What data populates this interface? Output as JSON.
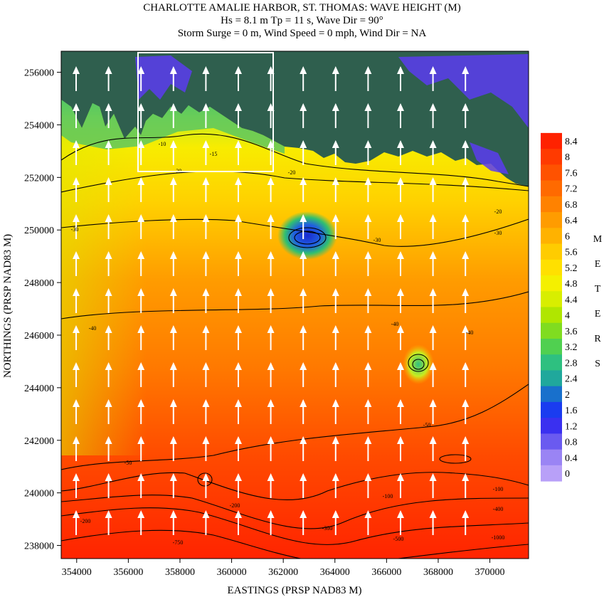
{
  "chart_data": {
    "type": "heatmap",
    "title": "CHARLOTTE AMALIE HARBOR, ST. THOMAS: WAVE HEIGHT (M)",
    "subtitle_lines": [
      "Hs = 8.1 m Tp = 11 s, Wave Dir = 90°",
      "Storm Surge = 0 m, Wind Speed = 0 mph, Wind Dir = NA"
    ],
    "xlabel": "EASTINGS (PRSP NAD83 M)",
    "ylabel": "NORTHINGS (PRSP NAD83 M)",
    "xlim": [
      353400,
      371500
    ],
    "ylim": [
      237500,
      256800
    ],
    "x_ticks": [
      "354000",
      "356000",
      "358000",
      "360000",
      "362000",
      "364000",
      "366000",
      "368000",
      "370000"
    ],
    "y_ticks": [
      "238000",
      "240000",
      "242000",
      "244000",
      "246000",
      "248000",
      "250000",
      "252000",
      "254000",
      "256000"
    ],
    "colorbar": {
      "label": "METERS",
      "label_letters": [
        "M",
        "E",
        "T",
        "E",
        "R",
        "S"
      ],
      "ticks": [
        "8.4",
        "8",
        "7.6",
        "7.2",
        "6.8",
        "6.4",
        "6",
        "5.6",
        "5.2",
        "4.8",
        "4.4",
        "4",
        "3.6",
        "3.2",
        "2.8",
        "2.4",
        "2",
        "1.6",
        "1.2",
        "0.8",
        "0.4",
        "0"
      ],
      "colors": [
        "#ff2200",
        "#ff3a00",
        "#ff5200",
        "#ff6a00",
        "#ff8200",
        "#ff9c00",
        "#ffb200",
        "#ffcc00",
        "#ffe000",
        "#f4f000",
        "#d8ee00",
        "#b0e600",
        "#80dc20",
        "#50d050",
        "#2ec080",
        "#20a89c",
        "#1870cc",
        "#1a3cf0",
        "#3a30f0",
        "#6a5af0",
        "#9a84f4",
        "#b8a0f8"
      ]
    },
    "contour_labels": [
      "-10",
      "-15",
      "-20",
      "-30",
      "-40",
      "-50",
      "-100",
      "-200",
      "-300",
      "-400",
      "-500",
      "-750",
      "-1000"
    ],
    "study_box": {
      "x": [
        356500,
        361700
      ],
      "y": [
        252400,
        256900
      ]
    },
    "wave_dir_deg": 90
  }
}
